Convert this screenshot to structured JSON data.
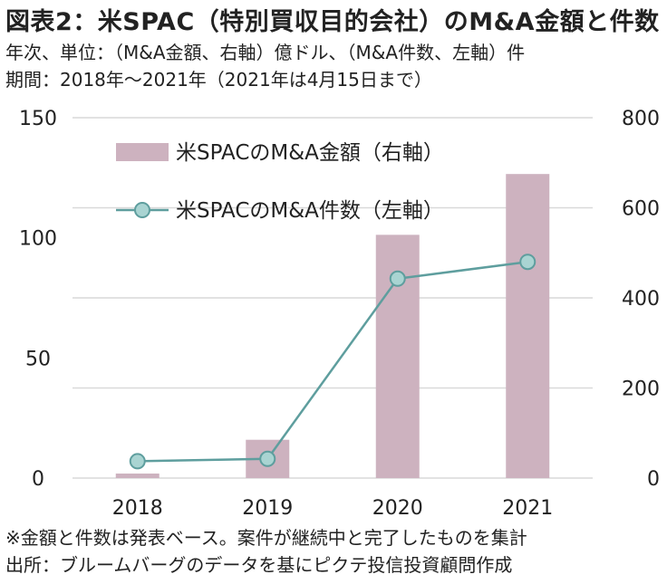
{
  "header": {
    "title": "図表2：米SPAC（特別買収目的会社）のM&A金額と件数",
    "subtitle1": "年次、単位：（M&A金額、右軸）億ドル、（M&A件数、左軸）件",
    "subtitle2": "期間：2018年～2021年（2021年は4月15日まで）"
  },
  "footer": {
    "note1": "※金額と件数は発表ベース。案件が継続中と完了したものを集計",
    "note2": "出所：ブルームバーグのデータを基にピクテ投信投資顧問作成"
  },
  "chart_data": {
    "type": "bar+line",
    "categories": [
      "2018",
      "2019",
      "2020",
      "2021"
    ],
    "series": [
      {
        "name": "米SPACのM&A金額（右軸）",
        "type": "bar",
        "axis": "right",
        "values": [
          10,
          85,
          540,
          675
        ],
        "color": "#cdb2bf"
      },
      {
        "name": "米SPACのM&A件数（左軸）",
        "type": "line",
        "axis": "left",
        "values": [
          7,
          8,
          83,
          90
        ],
        "color": "#5e9e9e",
        "marker_fill": "#a9d4d2"
      }
    ],
    "left_axis": {
      "ylim": [
        0,
        150
      ],
      "ticks": [
        "0",
        "50",
        "100",
        "150"
      ]
    },
    "right_axis": {
      "ylim": [
        0,
        800
      ],
      "ticks": [
        "0",
        "200",
        "400",
        "600",
        "800"
      ]
    },
    "grid": true,
    "legend": "top-left"
  }
}
